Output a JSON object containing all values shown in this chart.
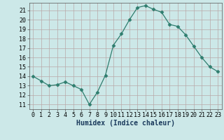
{
  "x": [
    0,
    1,
    2,
    3,
    4,
    5,
    6,
    7,
    8,
    9,
    10,
    11,
    12,
    13,
    14,
    15,
    16,
    17,
    18,
    19,
    20,
    21,
    22,
    23
  ],
  "y": [
    14.0,
    13.5,
    13.0,
    13.1,
    13.4,
    13.0,
    12.6,
    11.0,
    12.3,
    14.1,
    17.3,
    18.5,
    20.0,
    21.3,
    21.5,
    21.1,
    20.8,
    19.5,
    19.3,
    18.4,
    17.2,
    16.0,
    15.0,
    14.5
  ],
  "line_color": "#2e7d6e",
  "marker": "D",
  "marker_size": 2.5,
  "bg_color": "#cce8e8",
  "grid_color": "#b8a8a8",
  "xlabel": "Humidex (Indice chaleur)",
  "xlim": [
    -0.5,
    23.5
  ],
  "ylim": [
    10.5,
    21.8
  ],
  "yticks": [
    11,
    12,
    13,
    14,
    15,
    16,
    17,
    18,
    19,
    20,
    21
  ],
  "xticks": [
    0,
    1,
    2,
    3,
    4,
    5,
    6,
    7,
    8,
    9,
    10,
    11,
    12,
    13,
    14,
    15,
    16,
    17,
    18,
    19,
    20,
    21,
    22,
    23
  ],
  "tick_fontsize": 6.0,
  "xlabel_fontsize": 7.0
}
